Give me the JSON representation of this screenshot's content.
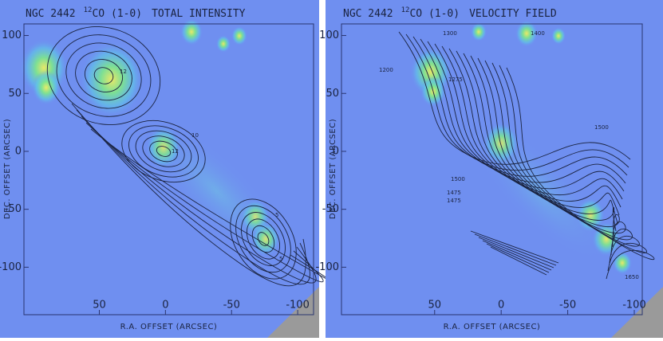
{
  "chart_data": [
    {
      "type": "contour",
      "title": [
        "NGC 2442",
        "12",
        "CO (1-0)",
        "TOTAL INTENSITY"
      ],
      "xlabel": "R.A. OFFSET (ARCSEC)",
      "ylabel": "DEC. OFFSET (ARCSEC)",
      "xlim": [
        107,
        -112
      ],
      "ylim": [
        -141,
        110
      ],
      "xticks": [
        50,
        0,
        -50,
        -100
      ],
      "yticks": [
        100,
        50,
        0,
        -50,
        -100
      ],
      "contour_labels": [
        "12",
        "10",
        "12",
        "5",
        "5"
      ]
    },
    {
      "type": "contour",
      "title": [
        "NGC 2442",
        "12",
        "CO (1-0)",
        "VELOCITY FIELD"
      ],
      "xlabel": "R.A. OFFSET (ARCSEC)",
      "ylabel": "DEC. OFFSET (ARCSEC)",
      "xlim": [
        120,
        -106
      ],
      "ylim": [
        -141,
        110
      ],
      "xticks": [
        50,
        0,
        -50,
        -100
      ],
      "yticks": [
        100,
        50,
        0,
        -50,
        -100
      ],
      "contour_labels": [
        "1300",
        "1400",
        "1200",
        "1275",
        "1500",
        "1500",
        "1475",
        "1475",
        "1650"
      ]
    }
  ]
}
